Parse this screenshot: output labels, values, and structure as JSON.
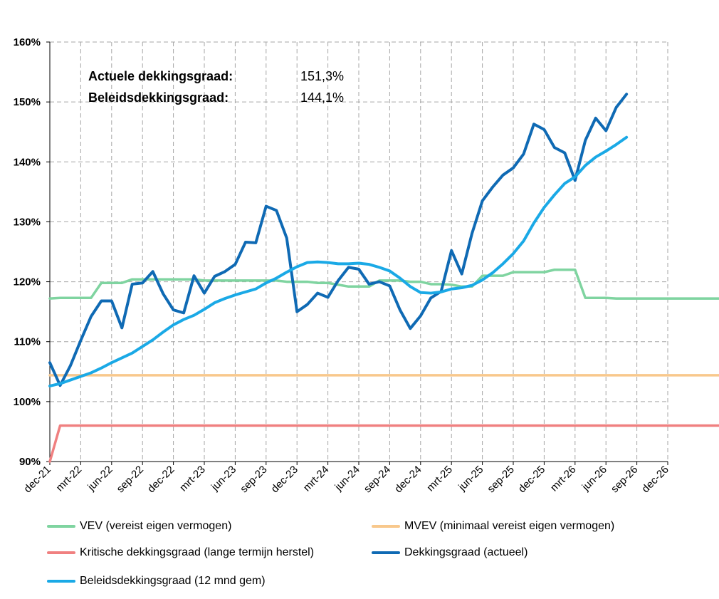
{
  "chart_data": {
    "type": "line",
    "ylim": [
      90,
      160
    ],
    "y_ticks": [
      "90%",
      "100%",
      "110%",
      "120%",
      "130%",
      "140%",
      "150%",
      "160%"
    ],
    "x_ticks": [
      "dec-21",
      "mrt-22",
      "jun-22",
      "sep-22",
      "dec-22",
      "mrt-23",
      "jun-23",
      "sep-23",
      "dec-23",
      "mrt-24",
      "jun-24",
      "sep-24",
      "dec-24",
      "mrt-25",
      "jun-25",
      "sep-25",
      "dec-25",
      "mrt-26",
      "jun-26",
      "sep-26",
      "dec-26"
    ],
    "grid": true,
    "annotations": [
      {
        "label": "Actuele dekkingsgraad:",
        "value": "151,3%"
      },
      {
        "label": "Beleidsdekkingsgraad:",
        "value": "144,1%"
      }
    ],
    "series": [
      {
        "name": "VEV (vereist eigen vermogen)",
        "color": "#7fd4a0",
        "values": [
          117.2,
          117.3,
          117.3,
          117.3,
          117.3,
          119.8,
          119.8,
          119.8,
          120.4,
          120.4,
          120.4,
          120.4,
          120.4,
          120.4,
          120.4,
          120.2,
          120.2,
          120.2,
          120.2,
          120.2,
          120.2,
          120.2,
          120.2,
          120.0,
          120.0,
          120.0,
          119.8,
          119.8,
          119.5,
          119.2,
          119.2,
          119.2,
          120.2,
          120.2,
          120.2,
          120.0,
          120.0,
          119.6,
          119.6,
          119.5,
          119.2,
          119.2,
          121.0,
          121.0,
          121.0,
          121.6,
          121.6,
          121.6,
          121.6,
          122.0,
          122.0,
          122.0,
          117.3,
          117.3,
          117.3,
          117.2,
          117.2,
          117.2,
          117.2,
          117.2,
          117.2,
          117.2,
          117.2,
          117.2,
          117.2,
          117.2,
          117.2,
          117.2,
          117.2,
          117.2,
          117.2,
          117.2,
          117.2
        ]
      },
      {
        "name": "MVEV (minimaal vereist eigen vermogen)",
        "color": "#f8c88c",
        "values": [
          104.4,
          104.4,
          104.4,
          104.4,
          104.4,
          104.4,
          104.4,
          104.4,
          104.4,
          104.4,
          104.4,
          104.4,
          104.4,
          104.4,
          104.4,
          104.4,
          104.4,
          104.4,
          104.4,
          104.4,
          104.4,
          104.4,
          104.4,
          104.4,
          104.4,
          104.4,
          104.4,
          104.4,
          104.4,
          104.4,
          104.4,
          104.4,
          104.4,
          104.4,
          104.4,
          104.4,
          104.4,
          104.4,
          104.4,
          104.4,
          104.4,
          104.4,
          104.4,
          104.4,
          104.4,
          104.4,
          104.4,
          104.4,
          104.4,
          104.4,
          104.4,
          104.4,
          104.4,
          104.4,
          104.4,
          104.4,
          104.4,
          104.4,
          104.4,
          104.4,
          104.4,
          104.4,
          104.4,
          104.4,
          104.4,
          104.4,
          104.4,
          104.4,
          104.4,
          104.4,
          104.4,
          104.4,
          104.4
        ]
      },
      {
        "name": "Kritische dekkingsgraad (lange termijn herstel)",
        "color": "#f08080",
        "values": [
          90.0,
          96.0,
          96.0,
          96.0,
          96.0,
          96.0,
          96.0,
          96.0,
          96.0,
          96.0,
          96.0,
          96.0,
          96.0,
          96.0,
          96.0,
          96.0,
          96.0,
          96.0,
          96.0,
          96.0,
          96.0,
          96.0,
          96.0,
          96.0,
          96.0,
          96.0,
          96.0,
          96.0,
          96.0,
          96.0,
          96.0,
          96.0,
          96.0,
          96.0,
          96.0,
          96.0,
          96.0,
          96.0,
          96.0,
          96.0,
          96.0,
          96.0,
          96.0,
          96.0,
          96.0,
          96.0,
          96.0,
          96.0,
          96.0,
          96.0,
          96.0,
          96.0,
          96.0,
          96.0,
          96.0,
          96.0,
          96.0,
          96.0,
          96.0,
          96.0,
          96.0,
          96.0,
          96.0,
          96.0,
          96.0,
          96.0,
          96.0,
          96.0,
          96.0,
          96.0,
          96.0,
          96.0,
          96.0
        ]
      },
      {
        "name": "Dekkingsgraad (actueel)",
        "color": "#0f6ab4",
        "values": [
          106.5,
          102.7,
          106.0,
          110.2,
          114.2,
          116.8,
          116.8,
          112.3,
          119.6,
          119.8,
          121.7,
          118.0,
          115.3,
          114.8,
          121.0,
          118.1,
          120.9,
          121.7,
          122.9,
          126.6,
          126.5,
          132.6,
          131.9,
          127.3,
          115.0,
          116.2,
          118.1,
          117.4,
          120.2,
          122.4,
          122.1,
          119.6,
          120.0,
          119.3,
          115.3,
          112.2,
          114.3,
          117.3,
          118.4,
          125.2,
          121.3,
          128.1,
          133.5,
          135.8,
          137.8,
          139.0,
          141.3,
          146.3,
          145.4,
          142.4,
          141.5,
          136.9,
          143.6,
          147.3,
          145.2,
          149.1,
          151.3
        ]
      },
      {
        "name": "Beleidsdekkingsgraad (12 mnd gem)",
        "color": "#1aa9e6",
        "values": [
          102.6,
          103.0,
          103.6,
          104.2,
          104.8,
          105.6,
          106.5,
          107.3,
          108.1,
          109.2,
          110.3,
          111.6,
          112.8,
          113.7,
          114.4,
          115.4,
          116.5,
          117.2,
          117.8,
          118.3,
          118.8,
          119.8,
          120.6,
          121.6,
          122.5,
          123.2,
          123.3,
          123.2,
          123.0,
          123.0,
          123.1,
          122.9,
          122.4,
          121.8,
          120.6,
          119.2,
          118.2,
          118.1,
          118.3,
          118.8,
          119.0,
          119.4,
          120.3,
          121.5,
          123.0,
          124.7,
          126.8,
          129.8,
          132.4,
          134.5,
          136.4,
          137.5,
          139.4,
          140.8,
          141.8,
          142.9,
          144.1
        ]
      }
    ]
  }
}
